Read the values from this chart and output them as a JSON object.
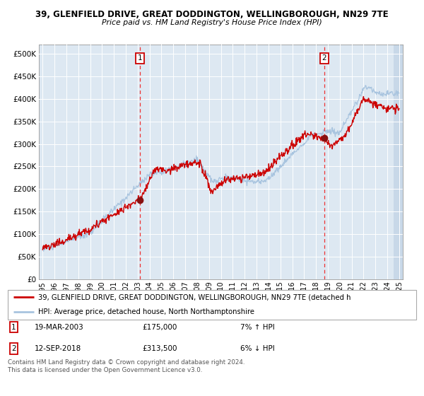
{
  "title1": "39, GLENFIELD DRIVE, GREAT DODDINGTON, WELLINGBOROUGH, NN29 7TE",
  "title2": "Price paid vs. HM Land Registry's House Price Index (HPI)",
  "legend_line1": "39, GLENFIELD DRIVE, GREAT DODDINGTON, WELLINGBOROUGH, NN29 7TE (detached h",
  "legend_line2": "HPI: Average price, detached house, North Northamptonshire",
  "footnote": "Contains HM Land Registry data © Crown copyright and database right 2024.\nThis data is licensed under the Open Government Licence v3.0.",
  "marker1_date": "19-MAR-2003",
  "marker1_price": 175000,
  "marker1_x": 2003.21,
  "marker2_date": "12-SEP-2018",
  "marker2_price": 313500,
  "marker2_x": 2018.7,
  "marker1_hpi": "7% ↑ HPI",
  "marker2_hpi": "6% ↓ HPI",
  "hpi_color": "#a8c4df",
  "price_color": "#cc0000",
  "marker_color": "#881111",
  "vline_color": "#ee3333",
  "bg_color": "#dde8f2",
  "hatch_bg": "#c8d8e8",
  "ylim": [
    0,
    520000
  ],
  "xlim": [
    1994.7,
    2025.3
  ],
  "yticks": [
    0,
    50000,
    100000,
    150000,
    200000,
    250000,
    300000,
    350000,
    400000,
    450000,
    500000
  ],
  "xticks": [
    1995,
    1996,
    1997,
    1998,
    1999,
    2000,
    2001,
    2002,
    2003,
    2004,
    2005,
    2006,
    2007,
    2008,
    2009,
    2010,
    2011,
    2012,
    2013,
    2014,
    2015,
    2016,
    2017,
    2018,
    2019,
    2020,
    2021,
    2022,
    2023,
    2024,
    2025
  ]
}
